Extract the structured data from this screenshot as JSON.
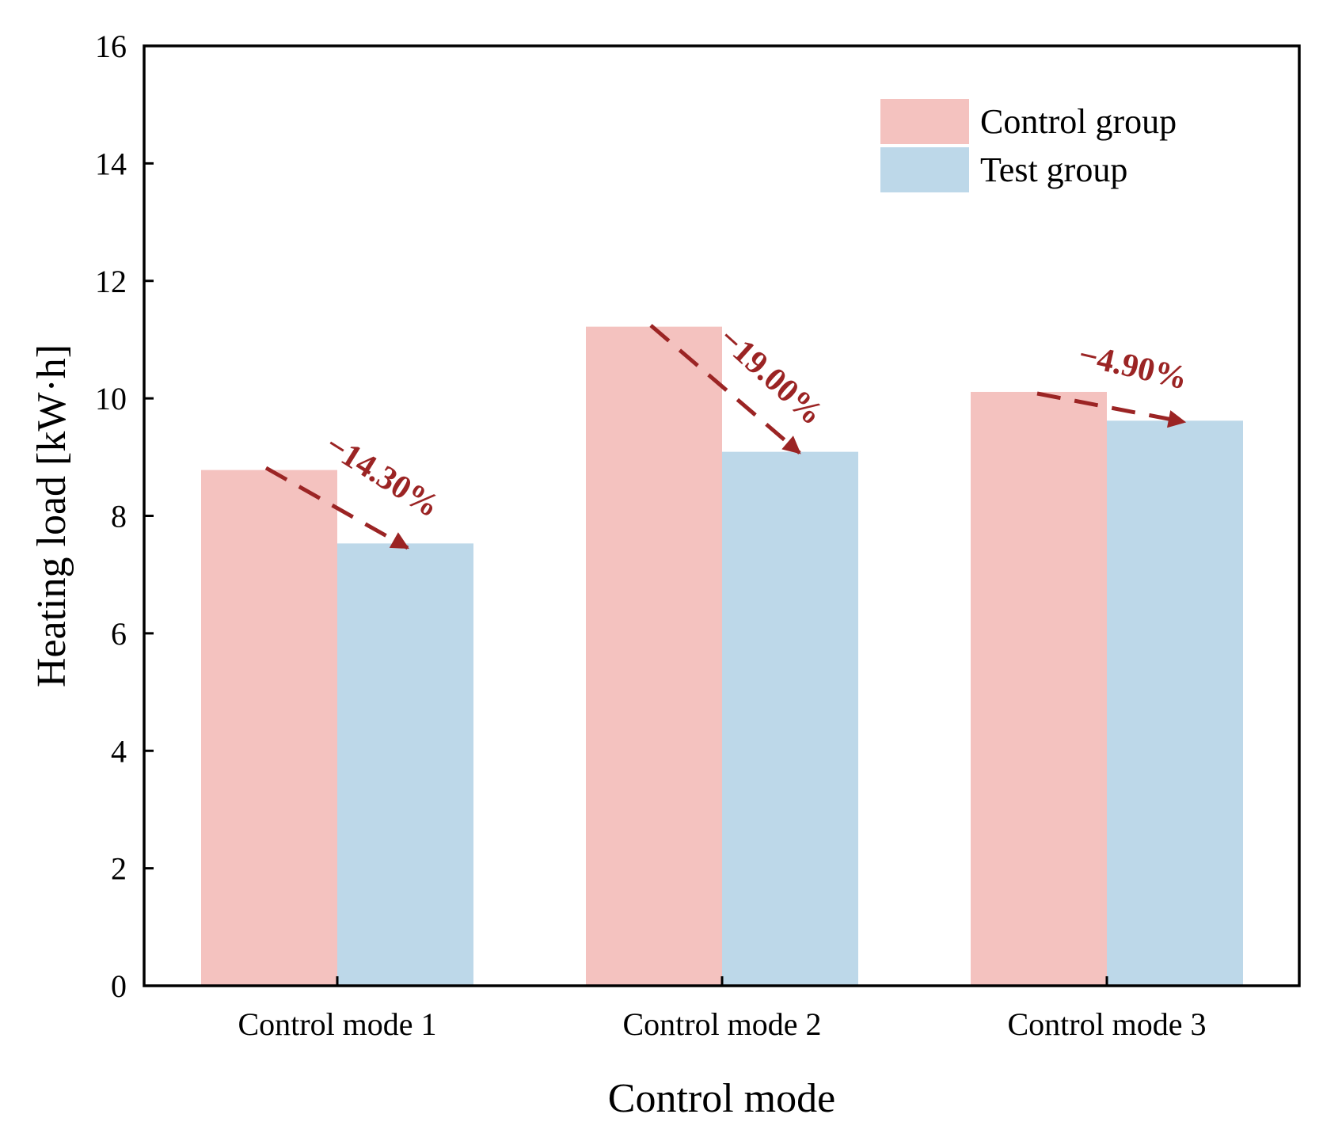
{
  "chart_data": {
    "type": "bar",
    "title": "",
    "xlabel": "Control mode",
    "ylabel": "Heating load [kW·h]",
    "ylim": [
      0,
      16
    ],
    "yticks": [
      0,
      2,
      4,
      6,
      8,
      10,
      12,
      14,
      16
    ],
    "ytick_labels": [
      "0",
      "2",
      "4",
      "6",
      "8",
      "10",
      "12",
      "14",
      "16"
    ],
    "categories": [
      "Control mode 1",
      "Control mode 2",
      "Control mode 3"
    ],
    "series": [
      {
        "name": "Control group",
        "color": "#f4c2bf",
        "values": [
          8.78,
          11.22,
          10.11
        ]
      },
      {
        "name": "Test group",
        "color": "#bdd8e9",
        "values": [
          7.53,
          9.09,
          9.62
        ]
      }
    ],
    "legend_position": "top-right",
    "grid": false,
    "annotations": [
      {
        "text": "−14.30%",
        "category": "Control mode 1",
        "from": 8.78,
        "to": 7.53,
        "color": "#9b2424"
      },
      {
        "text": "−19.00%",
        "category": "Control mode 2",
        "from": 11.22,
        "to": 9.09,
        "color": "#9b2424"
      },
      {
        "text": "−4.90%",
        "category": "Control mode 3",
        "from": 10.11,
        "to": 9.62,
        "color": "#9b2424"
      }
    ]
  }
}
